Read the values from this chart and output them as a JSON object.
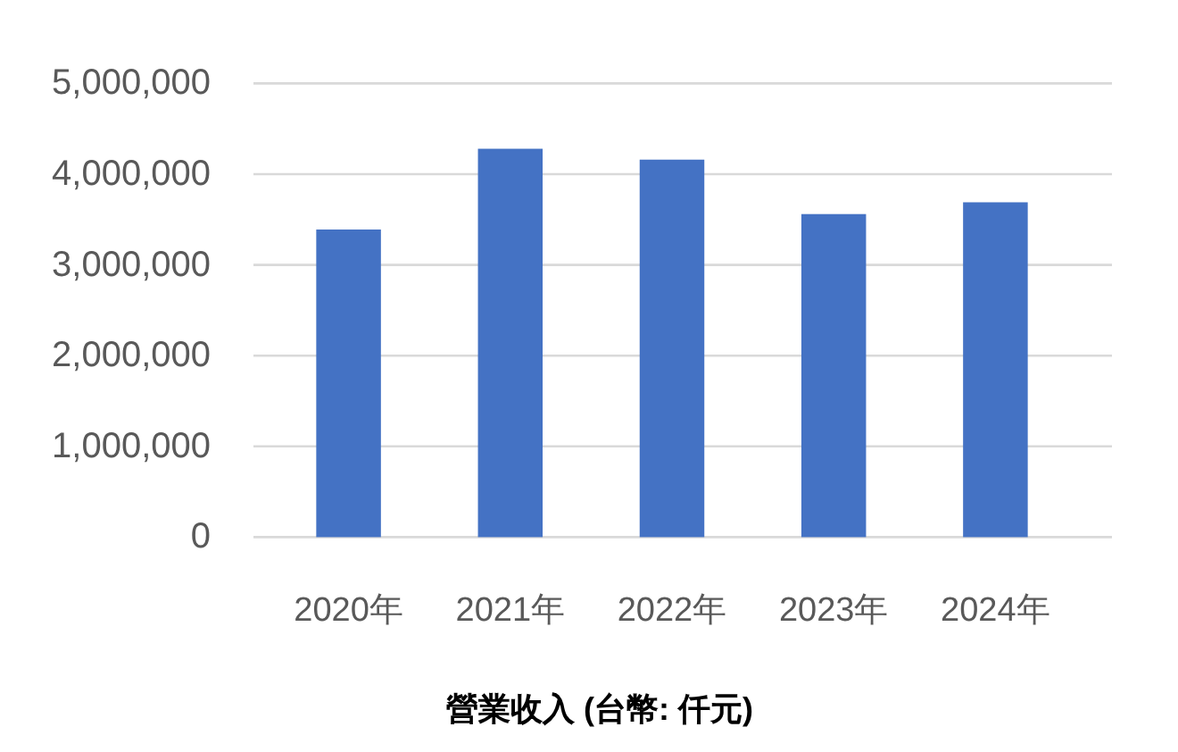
{
  "chart_data": {
    "type": "bar",
    "xlabel": "營業收入 (台幣: 仟元)",
    "categories": [
      "2020年",
      "2021年",
      "2022年",
      "2023年",
      "2024年"
    ],
    "values": [
      3390000,
      4280000,
      4160000,
      3560000,
      3690000
    ],
    "color": "#4472c4",
    "ylim": [
      0,
      5000000
    ],
    "yticks": [
      0,
      {
        "value": 1000000,
        "label": "1,000,000"
      },
      {
        "value": 2000000,
        "label": "2,000,000"
      },
      {
        "value": 3000000,
        "label": "3,000,000"
      },
      {
        "value": 4000000,
        "label": "4,000,000"
      },
      {
        "value": 5000000,
        "label": "5,000,000"
      }
    ],
    "grid": "y"
  }
}
